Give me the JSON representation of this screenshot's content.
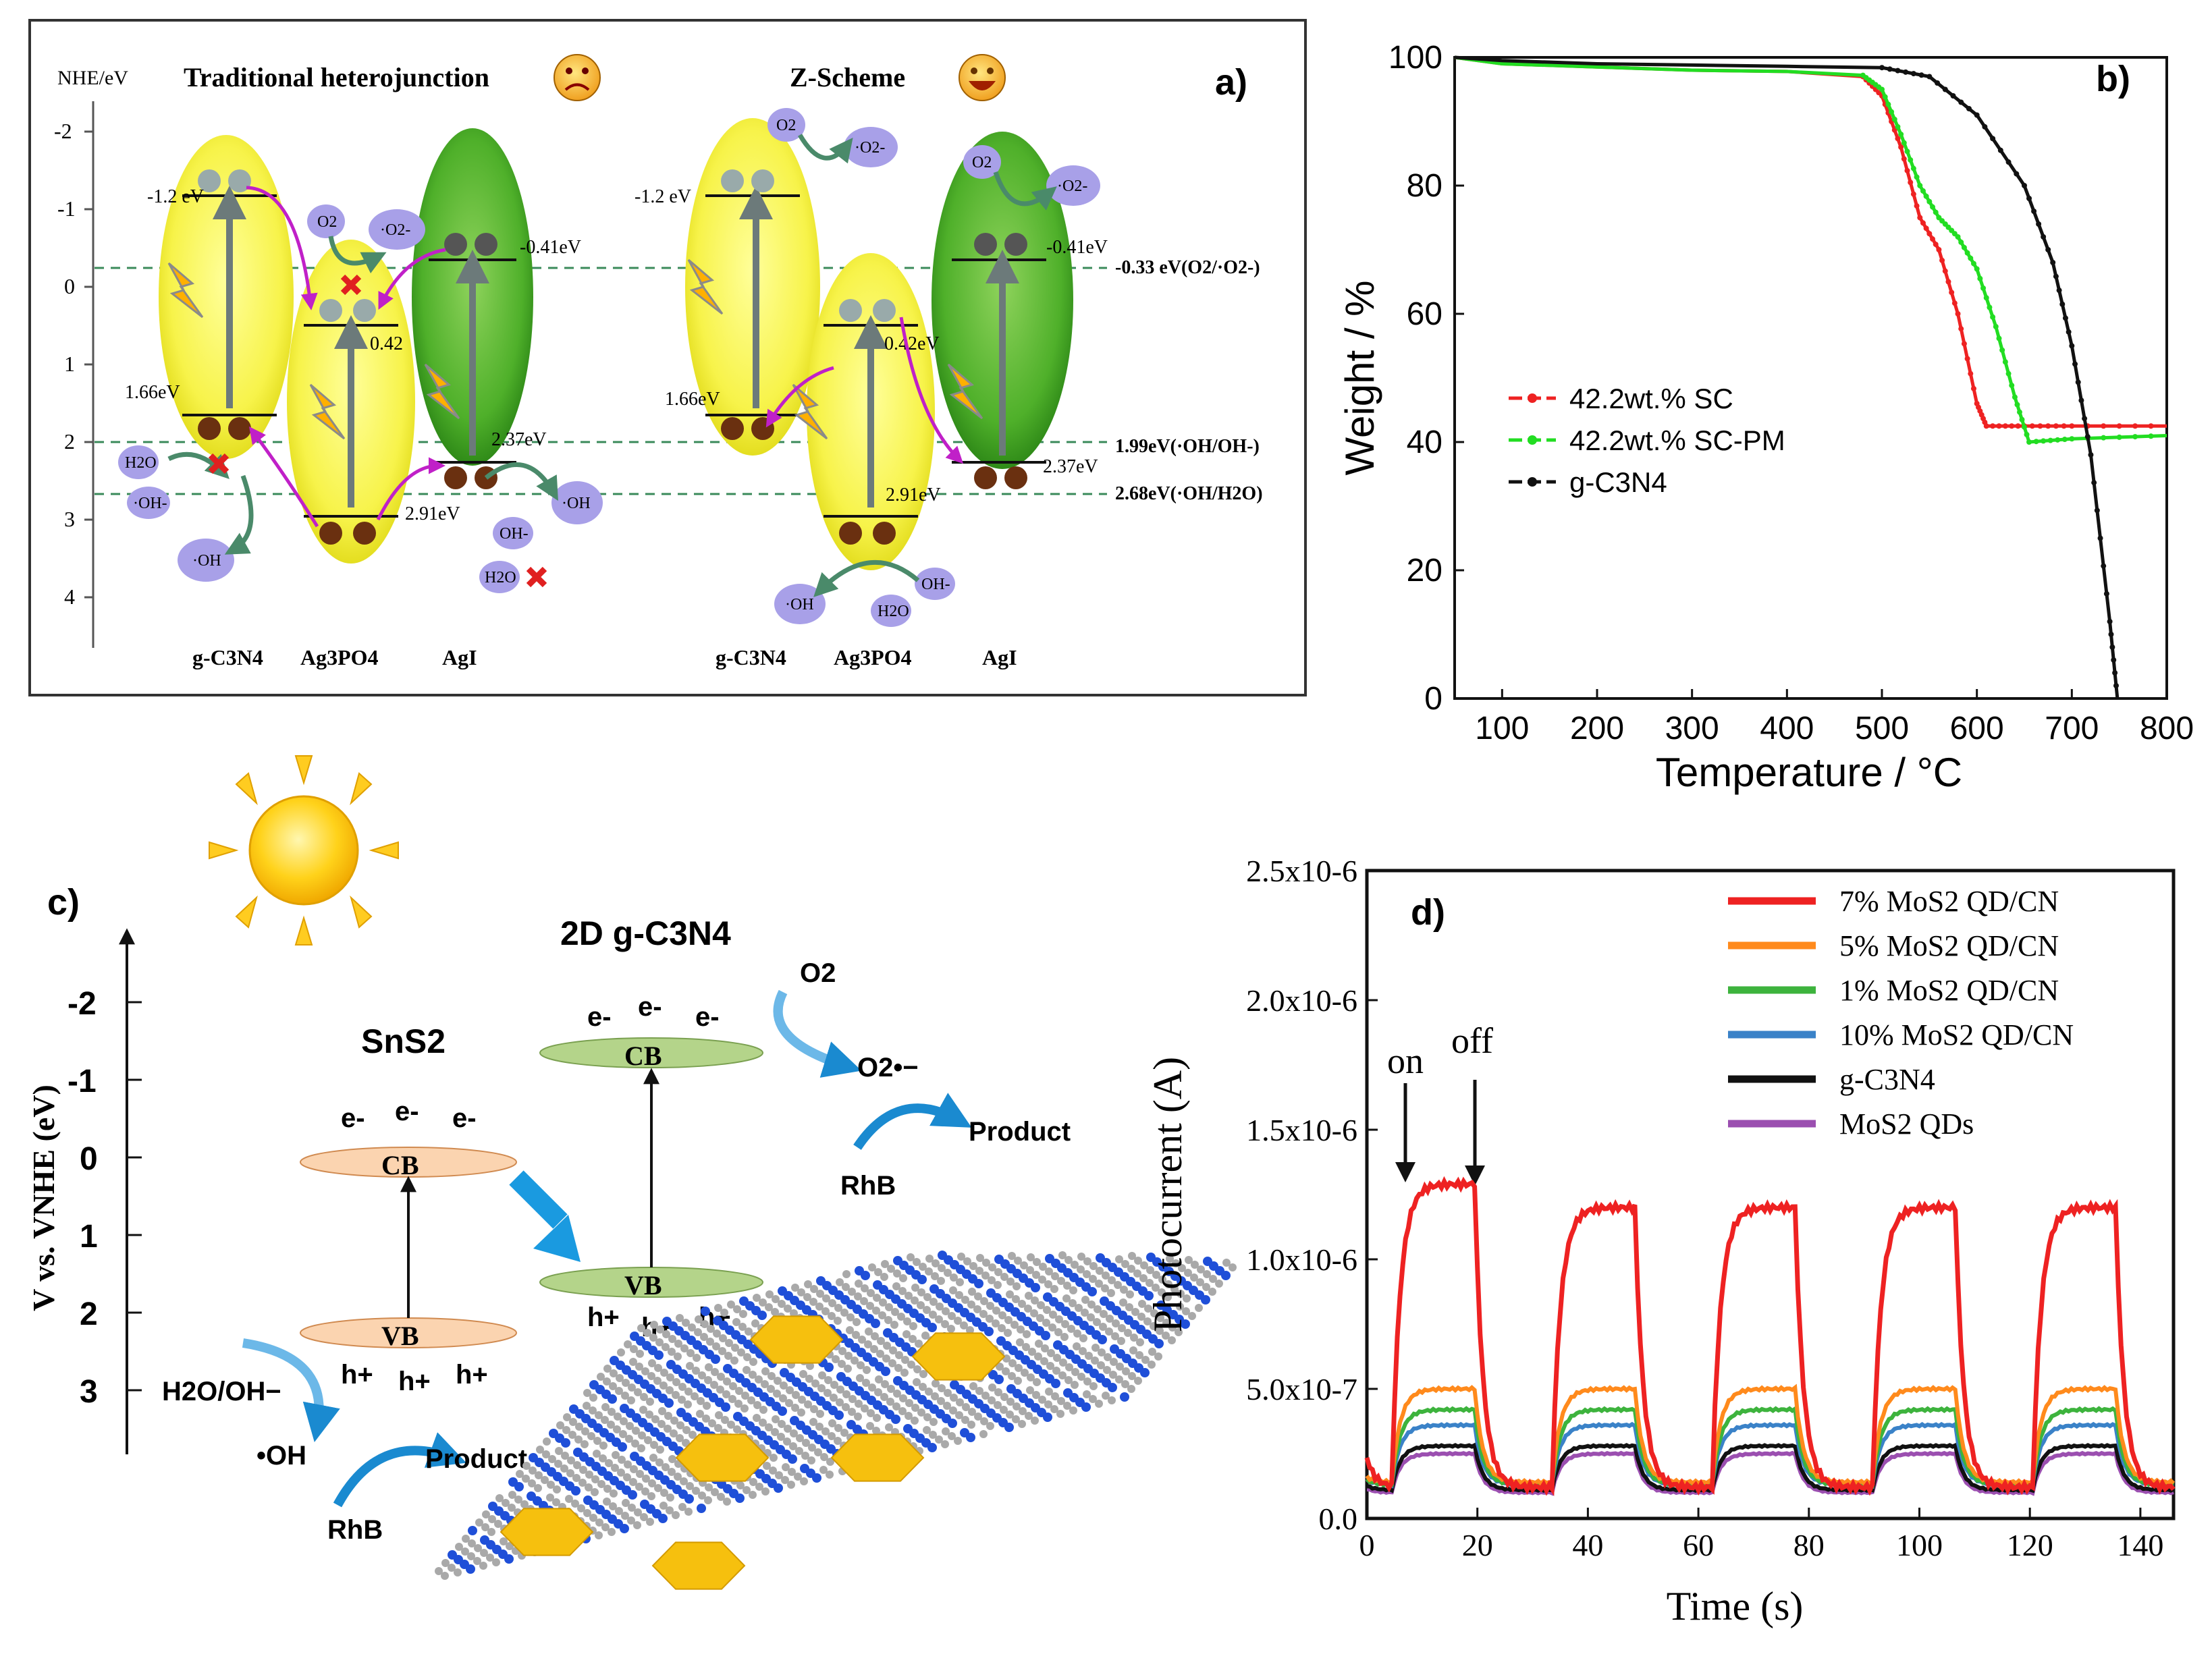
{
  "panel_a": {
    "label": "a)",
    "axis_label": "NHE/eV",
    "axis_ticks": [
      "-2",
      "-1",
      "0",
      "1",
      "2",
      "3",
      "4"
    ],
    "title_left": "Traditional heterojunction",
    "title_right": "Z-Scheme",
    "ref_lines": [
      "-0.33 eV(O2/·O2-)",
      "1.99eV(·OH/OH-)",
      "2.68eV(·OH/H2O)"
    ],
    "left_levels": [
      "-1.2 eV",
      "1.66eV",
      "0.42",
      "2.91eV",
      "-0.41eV",
      "2.37eV"
    ],
    "right_levels": [
      "-1.2 eV",
      "1.66eV",
      "0.42eV",
      "2.91eV",
      "-0.41eV",
      "2.37eV"
    ],
    "species": [
      "O2",
      "·O2-",
      "H2O",
      "·OH-",
      "·OH",
      "OH-"
    ],
    "materials": [
      "g-C3N4",
      "Ag3PO4",
      "AgI"
    ]
  },
  "panel_b": {
    "label": "b)",
    "ylabel": "Weight / %",
    "xlabel": "Temperature / °C",
    "chart_data": {
      "type": "line",
      "title": "",
      "xlabel": "Temperature / °C",
      "ylabel": "Weight / %",
      "xlim": [
        50,
        800
      ],
      "ylim": [
        0,
        100
      ],
      "xticks": [
        100,
        200,
        300,
        400,
        500,
        600,
        700,
        800
      ],
      "yticks": [
        0,
        20,
        40,
        60,
        80,
        100
      ],
      "series": [
        {
          "name": "42.2wt.% SC",
          "color": "#ee2222",
          "x": [
            50,
            100,
            200,
            300,
            400,
            480,
            500,
            520,
            540,
            560,
            580,
            600,
            610,
            650,
            700,
            800
          ],
          "y": [
            100,
            99,
            98.5,
            98,
            97.8,
            97,
            94,
            86,
            75,
            70,
            60,
            46,
            42.5,
            42.5,
            42.5,
            42.5
          ]
        },
        {
          "name": "42.2wt.% SC-PM",
          "color": "#22dd22",
          "x": [
            50,
            100,
            200,
            300,
            400,
            480,
            500,
            520,
            540,
            560,
            580,
            600,
            620,
            640,
            655,
            700,
            800
          ],
          "y": [
            100,
            99,
            98.5,
            98,
            97.8,
            97.2,
            95,
            88,
            80,
            75,
            72,
            67,
            58,
            47,
            40,
            40.5,
            41
          ]
        },
        {
          "name": "g-C3N4",
          "color": "#111111",
          "x": [
            50,
            100,
            200,
            300,
            400,
            500,
            550,
            600,
            650,
            680,
            700,
            720,
            740,
            748
          ],
          "y": [
            100,
            99.5,
            99,
            98.8,
            98.6,
            98.4,
            97,
            91,
            80,
            68,
            55,
            38,
            12,
            0
          ]
        }
      ]
    }
  },
  "panel_c": {
    "label": "c)",
    "ylabel": "V vs. VNHE (eV)",
    "ticks": [
      "-2",
      "-1",
      "0",
      "1",
      "2",
      "3"
    ],
    "title_2d": "2D g-C3N4",
    "title_sns2": "SnS2",
    "cb": "CB",
    "vb": "VB",
    "electron": "e-",
    "hole": "h+",
    "o2": "O2",
    "o2rad": "O2•−",
    "h2o_oh": "H2O/OH−",
    "oh_rad": "•OH",
    "product": "Product",
    "rhb": "RhB"
  },
  "panel_d": {
    "label": "d)",
    "ylabel": "Photocurrent (A)",
    "xlabel": "Time (s)",
    "on": "on",
    "off": "off",
    "yticks": [
      "0.0",
      "5.0x10-7",
      "1.0x10-6",
      "1.5x10-6",
      "2.0x10-6",
      "2.5x10-6"
    ],
    "chart_data": {
      "type": "line",
      "xlabel": "Time (s)",
      "ylabel": "Photocurrent (A)",
      "xlim": [
        0,
        146
      ],
      "ylim": [
        0,
        2.5e-06
      ],
      "xticks": [
        0,
        20,
        40,
        60,
        80,
        100,
        120,
        140
      ],
      "on_times": [
        5,
        34,
        63,
        92,
        121
      ],
      "off_times": [
        20,
        49,
        78,
        107,
        136
      ],
      "series": [
        {
          "name": "7% MoS2 QD/CN",
          "color": "#ee2222",
          "on_value": 1.2e-06,
          "off_value": 1.2e-07
        },
        {
          "name": "5% MoS2 QD/CN",
          "color": "#ff8a1c",
          "on_value": 5e-07,
          "off_value": 1.4e-07
        },
        {
          "name": "1% MoS2 QD/CN",
          "color": "#3db33d",
          "on_value": 4.2e-07,
          "off_value": 1.3e-07
        },
        {
          "name": "10% MoS2 QD/CN",
          "color": "#3a82c8",
          "on_value": 3.6e-07,
          "off_value": 1.3e-07
        },
        {
          "name": "g-C3N4",
          "color": "#111111",
          "on_value": 2.8e-07,
          "off_value": 1.1e-07
        },
        {
          "name": "MoS2 QDs",
          "color": "#9b4fb0",
          "on_value": 2.5e-07,
          "off_value": 1e-07
        }
      ]
    }
  }
}
